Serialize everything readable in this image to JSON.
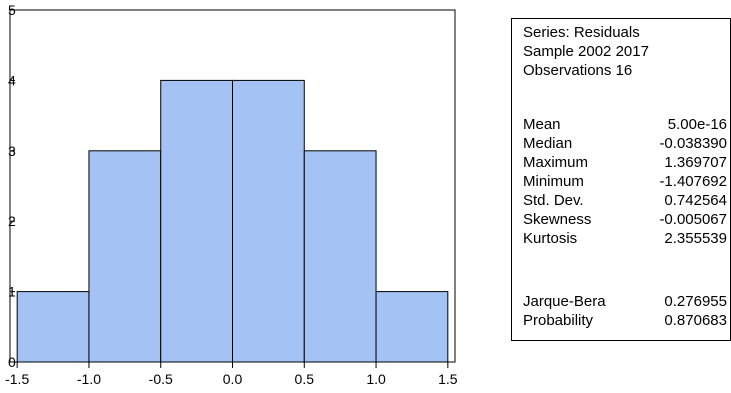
{
  "chart_data": {
    "type": "bar",
    "title": "",
    "xlabel": "",
    "ylabel": "",
    "bins": [
      {
        "from": -1.5,
        "to": -1.0,
        "count": 1
      },
      {
        "from": -1.0,
        "to": -0.5,
        "count": 3
      },
      {
        "from": -0.5,
        "to": 0.0,
        "count": 4
      },
      {
        "from": 0.0,
        "to": 0.5,
        "count": 4
      },
      {
        "from": 0.5,
        "to": 1.0,
        "count": 3
      },
      {
        "from": 1.0,
        "to": 1.5,
        "count": 1
      }
    ],
    "xlim": [
      -1.55,
      1.55
    ],
    "ylim": [
      0,
      5
    ],
    "x_ticks": [
      "-1.5",
      "-1.0",
      "-0.5",
      "0.0",
      "0.5",
      "1.0",
      "1.5"
    ],
    "x_tick_values": [
      -1.5,
      -1.0,
      -0.5,
      0.0,
      0.5,
      1.0,
      1.5
    ],
    "y_ticks": [
      "0",
      "1",
      "2",
      "3",
      "4",
      "5"
    ],
    "y_tick_values": [
      0,
      1,
      2,
      3,
      4,
      5
    ],
    "grid": false,
    "bar_color": "#a4c2f4",
    "edge_color": "#000000"
  },
  "stats": {
    "series": "Series: Residuals",
    "sample": "Sample 2002 2017",
    "observations": "Observations 16",
    "rows": [
      {
        "label": "Mean",
        "value": "5.00e-16"
      },
      {
        "label": "Median",
        "value": "-0.038390"
      },
      {
        "label": "Maximum",
        "value": "1.369707"
      },
      {
        "label": "Minimum",
        "value": "-1.407692"
      },
      {
        "label": "Std. Dev.",
        "value": "0.742564"
      },
      {
        "label": "Skewness",
        "value": "-0.005067"
      },
      {
        "label": "Kurtosis",
        "value": "2.355539"
      }
    ],
    "test_rows": [
      {
        "label": "Jarque-Bera",
        "value": "0.276955"
      },
      {
        "label": "Probability",
        "value": "0.870683"
      }
    ]
  }
}
